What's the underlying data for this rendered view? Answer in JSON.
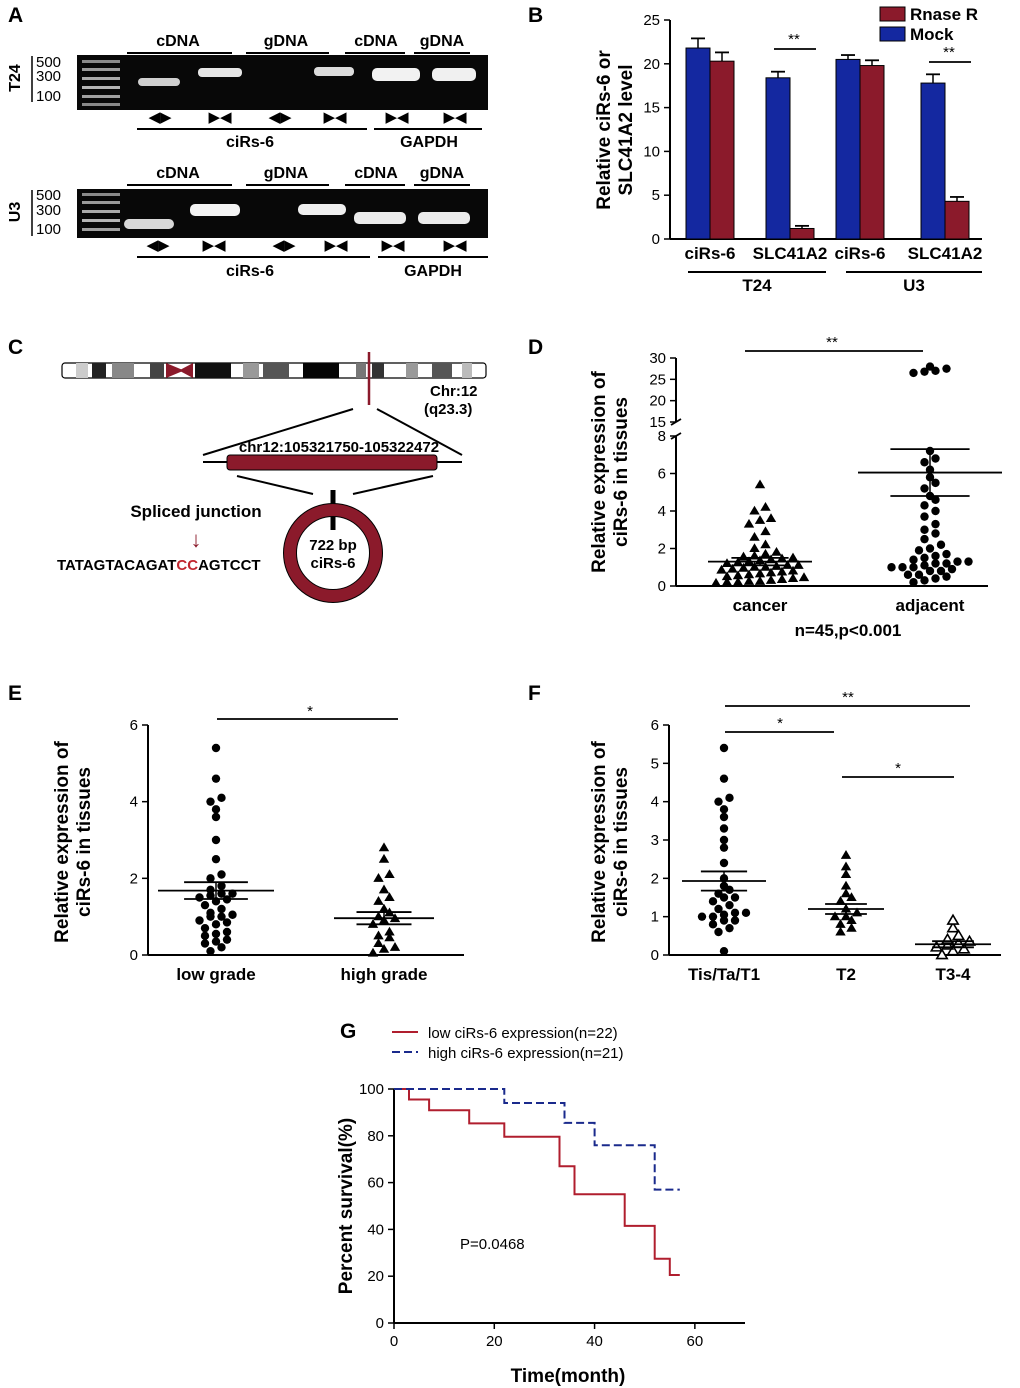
{
  "figure": {
    "panels": {
      "A": "A",
      "B": "B",
      "C": "C",
      "D": "D",
      "E": "E",
      "F": "F",
      "G": "G"
    },
    "gel": {
      "headers": [
        "cDNA",
        "gDNA",
        "cDNA",
        "gDNA"
      ],
      "size_markers": [
        "500",
        "300",
        "100"
      ],
      "row_labels": [
        "T24",
        "U3"
      ],
      "gene_labels": [
        "ciRs-6",
        "GAPDH"
      ],
      "primer_divergent": "◀▶",
      "primer_convergent": "▶◀"
    },
    "schematic": {
      "chr_label": "Chr:12",
      "band_label": "(q23.3)",
      "region_label": "chr12:105321750-105322472",
      "junction_title": "Spliced junction",
      "arrow": "↓",
      "seq_left": "TATAGTACAGAT",
      "seq_highlight": "CC",
      "seq_right": "AGTCCT",
      "circle_size": "722 bp",
      "circle_name": "ciRs-6"
    },
    "significance": {
      "double": "**",
      "single": "*"
    },
    "p_value_G": "P=0.0468",
    "n_label_D": "n=45,p<0.001"
  },
  "chart_data": [
    {
      "panel": "B",
      "type": "bar",
      "ylabel": "Relative ciRs-6 or SLC41A2 level",
      "ylabel_line1": "Relative  ciRs-6 or",
      "ylabel_line2": "SLC41A2 level",
      "ylim": [
        0,
        25
      ],
      "yticks": [
        0,
        5,
        10,
        15,
        20,
        25
      ],
      "categories": [
        "ciRs-6",
        "SLC41A2",
        "ciRs-6",
        "SLC41A2"
      ],
      "groups": [
        "T24",
        "U3"
      ],
      "legend_position": "top-right",
      "series": [
        {
          "name": "Rnase R",
          "color": "#8b1a2b",
          "values": [
            20.3,
            1.2,
            19.8,
            4.3
          ],
          "errors": [
            1.0,
            0.3,
            0.6,
            0.5
          ]
        },
        {
          "name": "Mock",
          "color": "#1428a0",
          "values": [
            21.8,
            18.4,
            20.5,
            17.8
          ],
          "errors": [
            1.1,
            0.7,
            0.5,
            1.0
          ]
        }
      ],
      "significance": [
        {
          "category_index": 1,
          "label": "**"
        },
        {
          "category_index": 3,
          "label": "**"
        }
      ]
    },
    {
      "panel": "D",
      "type": "scatter",
      "ylabel_line1": "Relative expression of",
      "ylabel_line2": "ciRs-6 in tissues",
      "lower_ylim": [
        0,
        8
      ],
      "lower_yticks": [
        0,
        2,
        4,
        6,
        8
      ],
      "upper_ylim": [
        15,
        30
      ],
      "upper_yticks": [
        15,
        20,
        25,
        30
      ],
      "categories": [
        "cancer",
        "adjacent"
      ],
      "markers": [
        "triangle",
        "circle"
      ],
      "means": [
        1.3,
        6.05
      ],
      "sems": [
        0.2,
        1.25
      ],
      "note": "n=45,p<0.001",
      "significance": [
        {
          "from": 0,
          "to": 1,
          "label": "**"
        }
      ],
      "points": [
        [
          0.2,
          0.2,
          0.25,
          0.25,
          0.3,
          0.35,
          0.4,
          0.45,
          0.5,
          0.55,
          0.6,
          0.65,
          0.7,
          0.75,
          0.8,
          0.85,
          0.9,
          0.95,
          1.0,
          1.0,
          1.05,
          1.1,
          1.1,
          1.2,
          1.25,
          1.3,
          1.35,
          1.4,
          1.45,
          1.5,
          1.55,
          1.6,
          1.7,
          1.8,
          2.0,
          2.2,
          2.6,
          2.9,
          3.3,
          3.5,
          3.6,
          4.0,
          4.2,
          0.15,
          5.4
        ],
        [
          0.2,
          0.3,
          0.4,
          0.5,
          0.6,
          0.8,
          0.9,
          1.0,
          1.0,
          1.1,
          1.2,
          1.3,
          1.5,
          1.7,
          1.9,
          2.2,
          2.5,
          2.8,
          3.0,
          3.3,
          3.7,
          4.0,
          4.3,
          4.6,
          4.8,
          5.2,
          5.5,
          5.8,
          6.2,
          6.6,
          6.8,
          7.2,
          0.6,
          0.8,
          1.0,
          1.3,
          1.6,
          2.0,
          26.5,
          26.8,
          27.0,
          27.5,
          28.0,
          1.2,
          1.4
        ]
      ]
    },
    {
      "panel": "E",
      "type": "scatter",
      "ylabel_line1": "Relative expression of",
      "ylabel_line2": "ciRs-6 in tissues",
      "ylim": [
        0,
        6
      ],
      "yticks": [
        0,
        2,
        4,
        6
      ],
      "categories": [
        "low grade",
        "high grade"
      ],
      "markers": [
        "circle",
        "triangle"
      ],
      "means": [
        1.68,
        0.96
      ],
      "sems": [
        0.22,
        0.16
      ],
      "significance": [
        {
          "from": 0,
          "to": 1,
          "label": "*"
        }
      ],
      "points": [
        [
          0.1,
          0.2,
          0.3,
          0.35,
          0.4,
          0.5,
          0.55,
          0.6,
          0.7,
          0.8,
          0.85,
          0.9,
          1.0,
          1.0,
          1.05,
          1.1,
          1.2,
          1.3,
          1.4,
          1.45,
          1.5,
          1.55,
          1.6,
          1.6,
          1.7,
          1.8,
          2.0,
          2.1,
          2.5,
          3.0,
          3.6,
          3.8,
          4.0,
          4.1,
          4.6,
          5.4
        ],
        [
          0.05,
          0.15,
          0.2,
          0.3,
          0.45,
          0.5,
          0.6,
          0.8,
          0.9,
          0.95,
          1.0,
          1.1,
          1.2,
          1.4,
          1.5,
          1.7,
          2.0,
          2.1,
          2.5,
          2.8
        ]
      ]
    },
    {
      "panel": "F",
      "type": "scatter",
      "ylabel_line1": "Relative expression of",
      "ylabel_line2": "ciRs-6 in tissues",
      "ylim": [
        0,
        6
      ],
      "yticks": [
        0,
        1,
        2,
        3,
        4,
        5,
        6
      ],
      "categories": [
        "Tis/Ta/T1",
        "T2",
        "T3-4"
      ],
      "markers": [
        "circle",
        "triangle",
        "open-triangle"
      ],
      "means": [
        1.93,
        1.2,
        0.28
      ],
      "sems": [
        0.25,
        0.13,
        0.08
      ],
      "significance": [
        {
          "from": 0,
          "to": 1,
          "label": "*"
        },
        {
          "from": 1,
          "to": 2,
          "label": "*"
        },
        {
          "from": 0,
          "to": 2,
          "label": "**"
        }
      ],
      "points": [
        [
          0.1,
          0.6,
          0.7,
          0.8,
          0.9,
          1.0,
          1.0,
          1.05,
          1.1,
          1.2,
          1.3,
          1.4,
          1.5,
          1.6,
          1.7,
          1.8,
          2.0,
          2.4,
          2.8,
          3.0,
          3.3,
          3.6,
          3.8,
          4.0,
          4.1,
          4.6,
          5.4,
          1.5,
          1.1,
          0.9
        ],
        [
          0.6,
          0.7,
          0.8,
          0.9,
          1.0,
          1.0,
          1.1,
          1.2,
          1.4,
          1.5,
          1.6,
          1.8,
          2.1,
          2.3,
          2.6
        ],
        [
          0.0,
          0.1,
          0.15,
          0.2,
          0.25,
          0.3,
          0.35,
          0.4,
          0.5,
          0.7,
          0.9
        ]
      ]
    },
    {
      "panel": "G",
      "type": "line",
      "title": "",
      "xlabel": "Time(month)",
      "ylabel": "Percent survival(%)",
      "xlim": [
        0,
        70
      ],
      "xticks": [
        0,
        20,
        40,
        60
      ],
      "ylim": [
        0,
        100
      ],
      "yticks": [
        0,
        20,
        40,
        60,
        80,
        100
      ],
      "legend_position": "top",
      "series": [
        {
          "name": "low ciRs-6 expression(n=22)",
          "color": "#b01e2e",
          "dashed": false,
          "x": [
            0,
            3,
            3,
            7,
            7,
            15,
            15,
            22,
            22,
            33,
            33,
            36,
            36,
            46,
            46,
            52,
            52,
            55,
            55,
            57
          ],
          "y": [
            100,
            100,
            95.5,
            95.5,
            90.9,
            90.9,
            85.3,
            85.3,
            79.6,
            79.6,
            67.0,
            67.0,
            55.0,
            55.0,
            41.5,
            41.5,
            27.5,
            27.5,
            20.5,
            20.5
          ]
        },
        {
          "name": "high ciRs-6 expression(n=21)",
          "color": "#1a2a8c",
          "dashed": true,
          "x": [
            0,
            22,
            22,
            34,
            34,
            40,
            40,
            52,
            52,
            57
          ],
          "y": [
            100,
            100,
            94,
            94,
            85.5,
            85.5,
            76,
            76,
            57,
            57
          ]
        }
      ]
    }
  ]
}
